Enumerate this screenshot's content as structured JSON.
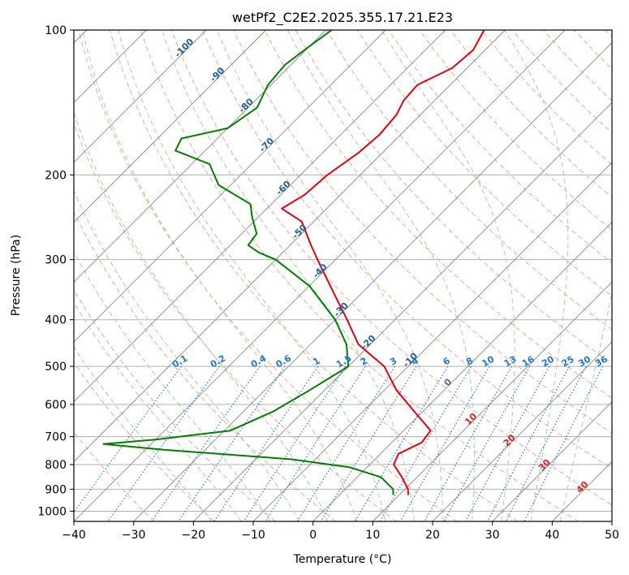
{
  "chart_data": {
    "type": "line",
    "chart_kind": "skew-T log-P diagram",
    "title": "wetPf2_C2E2.2025.355.17.21.E23",
    "xlabel": "Temperature (°C)",
    "ylabel": "Pressure (hPa)",
    "xlim": [
      -40,
      50
    ],
    "ylim": [
      1050,
      100
    ],
    "y_scale": "log",
    "x_ticks": [
      -40,
      -30,
      -20,
      -10,
      0,
      10,
      20,
      30,
      40,
      50
    ],
    "y_ticks": [
      100,
      200,
      300,
      400,
      500,
      600,
      700,
      800,
      900,
      1000
    ],
    "grid": true,
    "colors": {
      "temperature": "#e8000b",
      "dewpoint": "#007f00",
      "dry_adiabat": "#f5a58f",
      "moist_adiabat": "#9fd49f",
      "mixing_ratio": "#1f77d4",
      "isotherm": "#888888",
      "isotherm_label": "#1f5f9a",
      "dry_adiabat_label": "#d62728",
      "pressure_grid": "#b0b0b0"
    },
    "series": [
      {
        "key": "temperature",
        "points": [
          {
            "p": 100,
            "t": -53.5
          },
          {
            "p": 110,
            "t": -52
          },
          {
            "p": 120,
            "t": -52.5
          },
          {
            "p": 130,
            "t": -55.5
          },
          {
            "p": 140,
            "t": -55.2
          },
          {
            "p": 150,
            "t": -54
          },
          {
            "p": 165,
            "t": -53.5
          },
          {
            "p": 180,
            "t": -54
          },
          {
            "p": 200,
            "t": -55.5
          },
          {
            "p": 220,
            "t": -56
          },
          {
            "p": 235,
            "t": -57.5
          },
          {
            "p": 250,
            "t": -52
          },
          {
            "p": 280,
            "t": -46.5
          },
          {
            "p": 300,
            "t": -43
          },
          {
            "p": 350,
            "t": -35
          },
          {
            "p": 400,
            "t": -28
          },
          {
            "p": 450,
            "t": -22
          },
          {
            "p": 500,
            "t": -14
          },
          {
            "p": 560,
            "t": -8
          },
          {
            "p": 620,
            "t": -1.5
          },
          {
            "p": 680,
            "t": 4.5
          },
          {
            "p": 720,
            "t": 5
          },
          {
            "p": 760,
            "t": 3
          },
          {
            "p": 800,
            "t": 4
          },
          {
            "p": 850,
            "t": 7.5
          },
          {
            "p": 900,
            "t": 10.5
          },
          {
            "p": 925,
            "t": 11.5
          }
        ]
      },
      {
        "key": "dewpoint",
        "points": [
          {
            "p": 100,
            "t": -79
          },
          {
            "p": 108,
            "t": -80
          },
          {
            "p": 118,
            "t": -81
          },
          {
            "p": 130,
            "t": -80.5
          },
          {
            "p": 145,
            "t": -78.5
          },
          {
            "p": 160,
            "t": -80
          },
          {
            "p": 168,
            "t": -86
          },
          {
            "p": 178,
            "t": -85
          },
          {
            "p": 190,
            "t": -77
          },
          {
            "p": 210,
            "t": -72
          },
          {
            "p": 230,
            "t": -63.5
          },
          {
            "p": 245,
            "t": -61
          },
          {
            "p": 265,
            "t": -57.5
          },
          {
            "p": 280,
            "t": -57
          },
          {
            "p": 290,
            "t": -54
          },
          {
            "p": 300,
            "t": -50
          },
          {
            "p": 340,
            "t": -40
          },
          {
            "p": 400,
            "t": -30
          },
          {
            "p": 450,
            "t": -24
          },
          {
            "p": 500,
            "t": -20
          },
          {
            "p": 560,
            "t": -22.5
          },
          {
            "p": 620,
            "t": -25
          },
          {
            "p": 680,
            "t": -29
          },
          {
            "p": 710,
            "t": -40
          },
          {
            "p": 725,
            "t": -48
          },
          {
            "p": 745,
            "t": -37
          },
          {
            "p": 780,
            "t": -14
          },
          {
            "p": 810,
            "t": -3
          },
          {
            "p": 850,
            "t": 4
          },
          {
            "p": 900,
            "t": 8
          },
          {
            "p": 925,
            "t": 9
          }
        ]
      }
    ],
    "isotherm_labels": [
      -100,
      -90,
      -80,
      -70,
      -60,
      -50,
      -40,
      -30,
      -20,
      -10,
      0
    ],
    "dry_adiabat_labels": [
      10,
      20,
      30,
      40
    ],
    "mixing_ratio_labels": [
      "0.1",
      "0.2",
      "0.4",
      "0.6",
      "1",
      "1.5",
      "2",
      "3",
      "4",
      "6",
      "8",
      "10",
      "13",
      "16",
      "20",
      "25",
      "30",
      "36"
    ],
    "mixing_ratio_values": [
      0.1,
      0.2,
      0.4,
      0.6,
      1,
      1.5,
      2,
      3,
      4,
      6,
      8,
      10,
      13,
      16,
      20,
      25,
      30,
      36
    ],
    "isotherm_label_pressures": [
      110,
      125,
      145,
      175,
      215,
      265,
      320,
      385,
      450,
      490,
      545
    ],
    "dry_adiabat_label_pressures": [
      650,
      720,
      810,
      900
    ]
  }
}
